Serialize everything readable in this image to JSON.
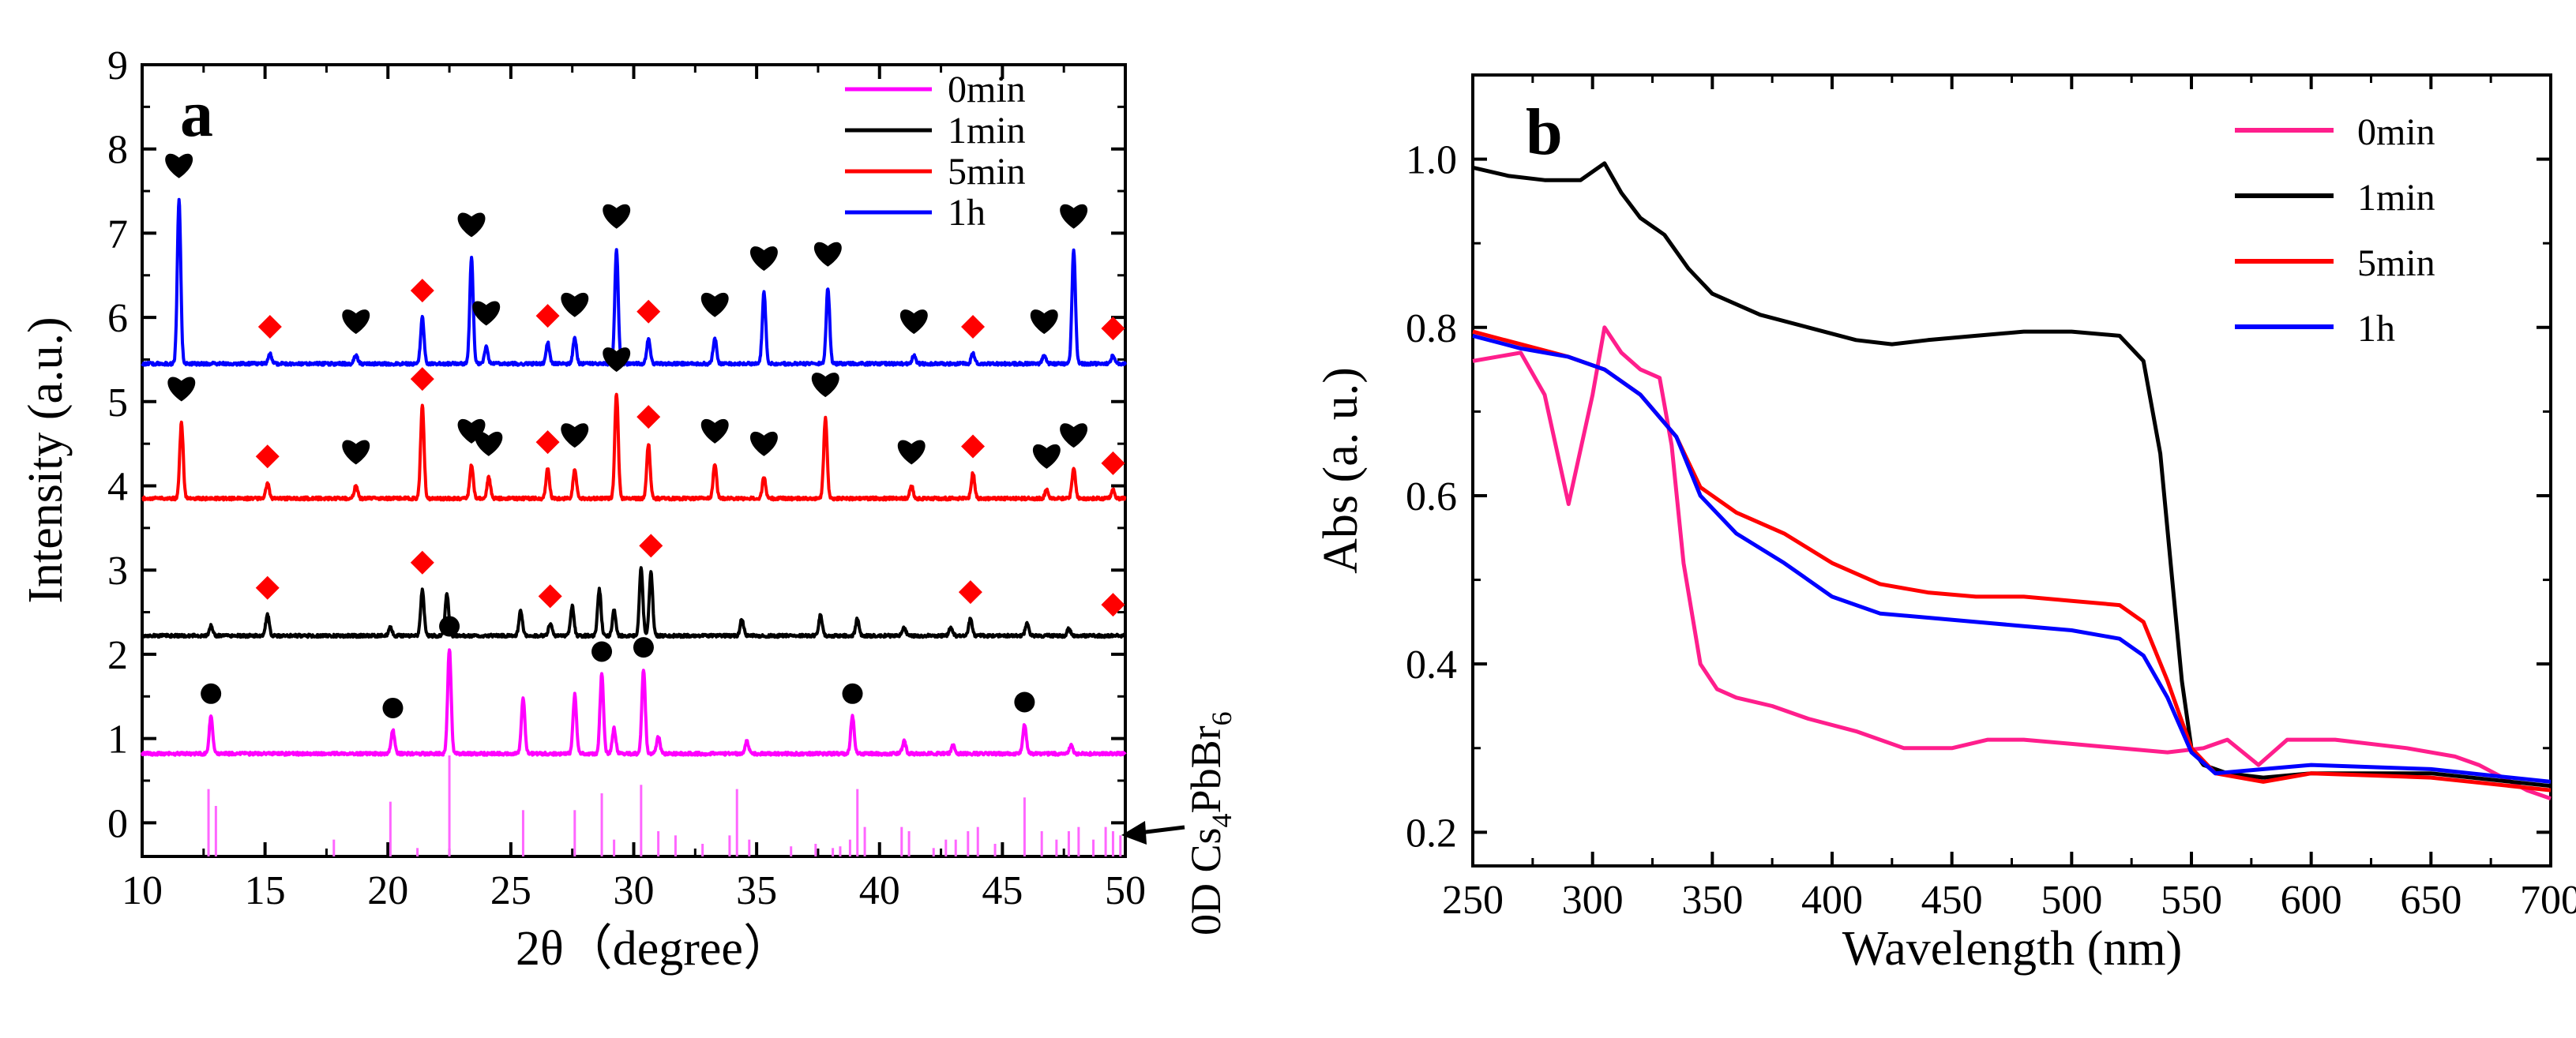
{
  "chart_data": [
    {
      "panel": "a",
      "type": "line",
      "panel_label": "a",
      "xlabel": "2θ（degree）",
      "ylabel": "Intensity (a.u.)",
      "xlim": [
        10,
        50
      ],
      "ylim": [
        -0.4,
        9
      ],
      "xticks": [
        "10",
        "15",
        "20",
        "25",
        "30",
        "35",
        "40",
        "45",
        "50"
      ],
      "yticks": [
        "0",
        "1",
        "2",
        "3",
        "4",
        "5",
        "6",
        "7",
        "8",
        "9"
      ],
      "reference_label": "0D Cs4PbBr6",
      "reference_label_parts": {
        "a": "0D Cs",
        "b": "4",
        "c": "PbBr",
        "d": "6"
      },
      "colors": {
        "0min": "#ff00ff",
        "1min": "#000000",
        "5min": "#ff0000",
        "1h": "#0000ff",
        "ref": "#ff66ff"
      },
      "legend": [
        "0min",
        "1min",
        "5min",
        "1h"
      ],
      "legend_position": "top-right",
      "series": [
        {
          "name": "0min",
          "baseline": 0.82,
          "peaks": [
            [
              12.8,
              0.45
            ],
            [
              20.2,
              0.28
            ],
            [
              22.5,
              1.25
            ],
            [
              25.5,
              0.65
            ],
            [
              27.6,
              0.7
            ],
            [
              28.7,
              0.95
            ],
            [
              29.2,
              0.3
            ],
            [
              30.4,
              1.0
            ],
            [
              31.0,
              0.2
            ],
            [
              34.6,
              0.15
            ],
            [
              38.9,
              0.45
            ],
            [
              41.0,
              0.15
            ],
            [
              43.0,
              0.1
            ],
            [
              45.9,
              0.35
            ],
            [
              47.8,
              0.1
            ]
          ]
        },
        {
          "name": "1min",
          "baseline": 2.22,
          "peaks": [
            [
              12.8,
              0.12
            ],
            [
              15.1,
              0.25
            ],
            [
              20.1,
              0.1
            ],
            [
              21.4,
              0.55
            ],
            [
              22.4,
              0.5
            ],
            [
              25.4,
              0.3
            ],
            [
              26.6,
              0.15
            ],
            [
              27.5,
              0.35
            ],
            [
              28.6,
              0.55
            ],
            [
              29.2,
              0.3
            ],
            [
              30.3,
              0.8
            ],
            [
              30.7,
              0.75
            ],
            [
              34.4,
              0.2
            ],
            [
              37.6,
              0.25
            ],
            [
              39.1,
              0.2
            ],
            [
              41.0,
              0.1
            ],
            [
              42.9,
              0.1
            ],
            [
              43.7,
              0.2
            ],
            [
              46.0,
              0.15
            ],
            [
              47.7,
              0.08
            ]
          ]
        },
        {
          "name": "5min",
          "baseline": 3.85,
          "peaks": [
            [
              11.6,
              0.9
            ],
            [
              15.1,
              0.18
            ],
            [
              18.7,
              0.15
            ],
            [
              21.4,
              1.1
            ],
            [
              23.4,
              0.4
            ],
            [
              24.1,
              0.25
            ],
            [
              26.5,
              0.35
            ],
            [
              27.6,
              0.35
            ],
            [
              29.3,
              1.25
            ],
            [
              30.6,
              0.65
            ],
            [
              33.3,
              0.4
            ],
            [
              35.3,
              0.25
            ],
            [
              37.8,
              0.95
            ],
            [
              41.3,
              0.15
            ],
            [
              43.8,
              0.3
            ],
            [
              46.8,
              0.1
            ],
            [
              47.9,
              0.35
            ],
            [
              49.5,
              0.1
            ]
          ]
        },
        {
          "name": "1h",
          "baseline": 5.45,
          "peaks": [
            [
              11.5,
              1.95
            ],
            [
              15.2,
              0.12
            ],
            [
              18.7,
              0.1
            ],
            [
              21.4,
              0.55
            ],
            [
              23.4,
              1.25
            ],
            [
              24.0,
              0.2
            ],
            [
              26.5,
              0.25
            ],
            [
              27.6,
              0.3
            ],
            [
              29.3,
              1.35
            ],
            [
              30.6,
              0.3
            ],
            [
              33.3,
              0.3
            ],
            [
              35.3,
              0.85
            ],
            [
              37.9,
              0.9
            ],
            [
              41.4,
              0.1
            ],
            [
              43.8,
              0.12
            ],
            [
              46.7,
              0.1
            ],
            [
              47.9,
              1.35
            ],
            [
              49.5,
              0.1
            ]
          ]
        }
      ],
      "reference_sticks": [
        [
          12.7,
          0.8
        ],
        [
          13.0,
          0.6
        ],
        [
          17.8,
          0.2
        ],
        [
          20.1,
          0.65
        ],
        [
          21.2,
          0.1
        ],
        [
          22.5,
          1.2
        ],
        [
          25.5,
          0.55
        ],
        [
          27.6,
          0.55
        ],
        [
          28.7,
          0.75
        ],
        [
          29.2,
          0.2
        ],
        [
          30.3,
          0.85
        ],
        [
          31.0,
          0.3
        ],
        [
          31.7,
          0.25
        ],
        [
          32.8,
          0.15
        ],
        [
          33.9,
          0.25
        ],
        [
          34.2,
          0.8
        ],
        [
          34.7,
          0.2
        ],
        [
          36.4,
          0.12
        ],
        [
          37.4,
          0.15
        ],
        [
          38.1,
          0.1
        ],
        [
          38.4,
          0.12
        ],
        [
          38.8,
          0.2
        ],
        [
          39.1,
          0.8
        ],
        [
          39.4,
          0.35
        ],
        [
          40.9,
          0.35
        ],
        [
          41.2,
          0.3
        ],
        [
          42.2,
          0.1
        ],
        [
          42.7,
          0.2
        ],
        [
          43.1,
          0.2
        ],
        [
          43.6,
          0.3
        ],
        [
          44.0,
          0.35
        ],
        [
          44.7,
          0.15
        ],
        [
          45.9,
          0.7
        ],
        [
          46.6,
          0.3
        ],
        [
          47.2,
          0.2
        ],
        [
          47.7,
          0.3
        ],
        [
          48.1,
          0.35
        ],
        [
          48.7,
          0.2
        ],
        [
          49.2,
          0.35
        ],
        [
          49.5,
          0.3
        ],
        [
          49.8,
          0.25
        ]
      ],
      "markers": {
        "circle_0min": [
          12.8,
          20.2,
          22.5,
          28.7,
          30.4,
          38.9,
          45.9
        ],
        "diamond_1min": [
          15.1,
          21.4,
          26.6,
          30.7,
          43.7,
          49.5
        ],
        "heart_5min": [
          11.6,
          18.7,
          23.4,
          24.1,
          27.6,
          29.3,
          33.3,
          35.3,
          37.8,
          41.3,
          46.8,
          47.9
        ],
        "diamond_5min": [
          15.1,
          21.4,
          26.5,
          30.6,
          43.8,
          49.5
        ],
        "heart_1h": [
          11.5,
          18.7,
          23.4,
          24.0,
          27.6,
          29.3,
          33.3,
          35.3,
          37.9,
          41.4,
          46.7,
          47.9
        ],
        "diamond_1h": [
          15.2,
          21.4,
          26.5,
          30.6,
          43.8,
          49.5
        ]
      }
    },
    {
      "panel": "b",
      "type": "line",
      "panel_label": "b",
      "xlabel": "Wavelength (nm)",
      "ylabel": "Abs (a. u.)",
      "xlim": [
        250,
        700
      ],
      "ylim": [
        0.16,
        1.1
      ],
      "xticks": [
        "250",
        "300",
        "350",
        "400",
        "450",
        "500",
        "550",
        "600",
        "650",
        "700"
      ],
      "yticks": [
        "0.2",
        "0.4",
        "0.6",
        "0.8",
        "1.0"
      ],
      "legend": [
        "0min",
        "1min",
        "5min",
        "1h"
      ],
      "legend_position": "top-right",
      "colors": {
        "0min": "#ff1e8c",
        "1min": "#000000",
        "5min": "#ff0000",
        "1h": "#0000ff"
      },
      "series": [
        {
          "name": "0min",
          "x": [
            250,
            270,
            280,
            290,
            300,
            305,
            312,
            320,
            328,
            333,
            338,
            345,
            352,
            360,
            375,
            390,
            410,
            430,
            450,
            465,
            480,
            500,
            520,
            540,
            555,
            565,
            578,
            590,
            610,
            640,
            660,
            670,
            690,
            700
          ],
          "y": [
            0.76,
            0.77,
            0.72,
            0.59,
            0.72,
            0.8,
            0.77,
            0.75,
            0.74,
            0.66,
            0.52,
            0.4,
            0.37,
            0.36,
            0.35,
            0.335,
            0.32,
            0.3,
            0.3,
            0.31,
            0.31,
            0.305,
            0.3,
            0.295,
            0.3,
            0.31,
            0.28,
            0.31,
            0.31,
            0.3,
            0.29,
            0.28,
            0.25,
            0.24
          ]
        },
        {
          "name": "1min",
          "x": [
            250,
            265,
            280,
            295,
            305,
            312,
            320,
            330,
            340,
            350,
            370,
            390,
            410,
            425,
            440,
            460,
            480,
            500,
            520,
            530,
            537,
            542,
            546,
            550,
            555,
            565,
            580,
            600,
            650,
            700
          ],
          "y": [
            0.99,
            0.98,
            0.975,
            0.975,
            0.995,
            0.96,
            0.93,
            0.91,
            0.87,
            0.84,
            0.815,
            0.8,
            0.785,
            0.78,
            0.785,
            0.79,
            0.795,
            0.795,
            0.79,
            0.76,
            0.65,
            0.5,
            0.38,
            0.3,
            0.28,
            0.27,
            0.265,
            0.27,
            0.27,
            0.255
          ]
        },
        {
          "name": "5min",
          "x": [
            250,
            270,
            290,
            305,
            320,
            335,
            345,
            360,
            380,
            400,
            420,
            440,
            460,
            480,
            500,
            520,
            530,
            540,
            550,
            560,
            580,
            600,
            650,
            700
          ],
          "y": [
            0.795,
            0.78,
            0.765,
            0.75,
            0.72,
            0.67,
            0.61,
            0.58,
            0.555,
            0.52,
            0.495,
            0.485,
            0.48,
            0.48,
            0.475,
            0.47,
            0.45,
            0.38,
            0.3,
            0.27,
            0.26,
            0.27,
            0.265,
            0.25
          ]
        },
        {
          "name": "1h",
          "x": [
            250,
            270,
            290,
            305,
            320,
            335,
            345,
            360,
            380,
            400,
            420,
            440,
            460,
            480,
            500,
            520,
            530,
            540,
            550,
            560,
            580,
            600,
            650,
            700
          ],
          "y": [
            0.79,
            0.775,
            0.765,
            0.75,
            0.72,
            0.67,
            0.6,
            0.555,
            0.52,
            0.48,
            0.46,
            0.455,
            0.45,
            0.445,
            0.44,
            0.43,
            0.41,
            0.36,
            0.295,
            0.27,
            0.275,
            0.28,
            0.275,
            0.26
          ]
        }
      ]
    }
  ]
}
